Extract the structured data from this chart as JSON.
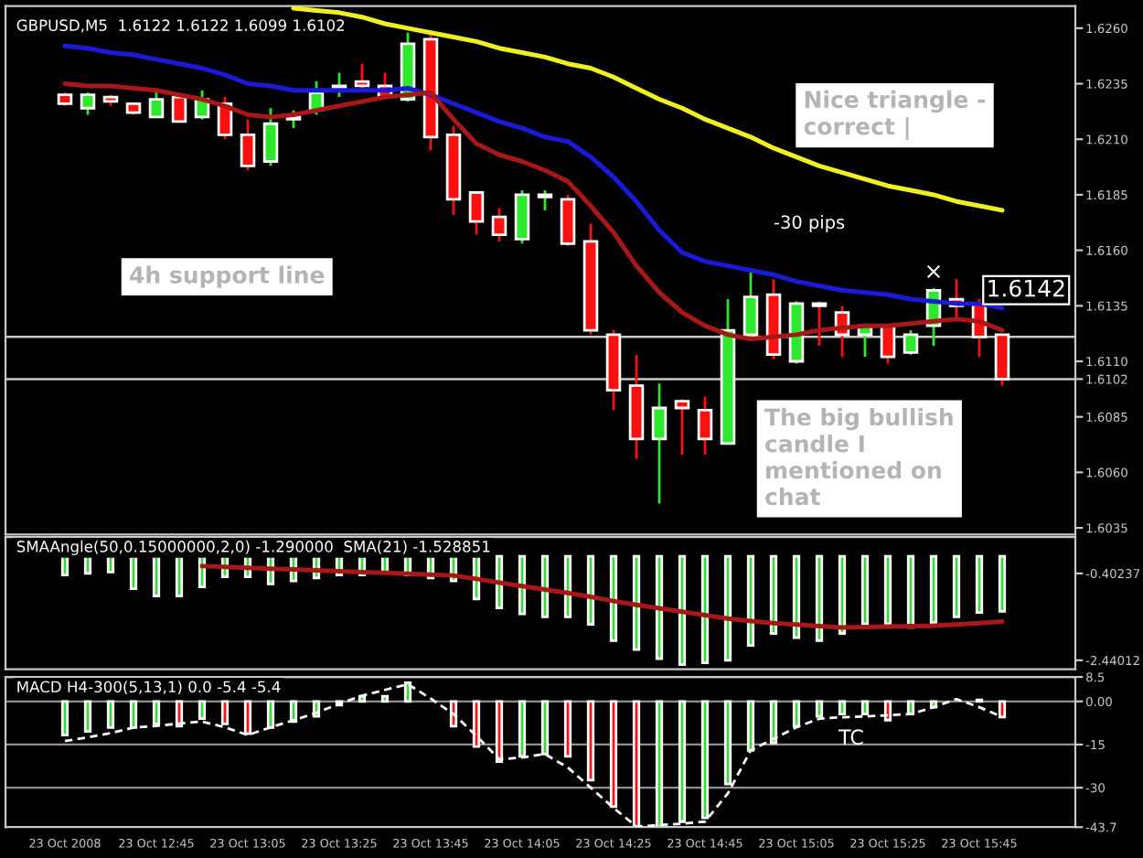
{
  "chart_data": [
    {
      "type": "candlestick",
      "title": "GBPUSD,M5  1.6122 1.6122 1.6099 1.6102",
      "categories": [
        null,
        null,
        null,
        null,
        null,
        null,
        null,
        null,
        null,
        null,
        null,
        null,
        null,
        null,
        null,
        null,
        null,
        null,
        null,
        null,
        null,
        null,
        null,
        null,
        null,
        null,
        null,
        null,
        null,
        null,
        null,
        null,
        null,
        null,
        null,
        null,
        null,
        null,
        null,
        null,
        null,
        null
      ],
      "ohlc": [
        [
          1.623,
          1.6231,
          1.6225,
          1.6226
        ],
        [
          1.6224,
          1.6231,
          1.6221,
          1.623
        ],
        [
          1.6229,
          1.623,
          1.6225,
          1.6227
        ],
        [
          1.6226,
          1.6226,
          1.6221,
          1.6222
        ],
        [
          1.622,
          1.6232,
          1.622,
          1.6228
        ],
        [
          1.6229,
          1.6231,
          1.6218,
          1.6218
        ],
        [
          1.622,
          1.6232,
          1.6219,
          1.6228
        ],
        [
          1.6226,
          1.6229,
          1.621,
          1.6212
        ],
        [
          1.6212,
          1.6219,
          1.6196,
          1.6198
        ],
        [
          1.62,
          1.6224,
          1.6198,
          1.6217
        ],
        [
          1.6219,
          1.6223,
          1.6215,
          1.622
        ],
        [
          1.6223,
          1.6236,
          1.6221,
          1.6231
        ],
        [
          1.6233,
          1.624,
          1.6229,
          1.6234
        ],
        [
          1.6236,
          1.6244,
          1.6233,
          1.6234
        ],
        [
          1.6234,
          1.624,
          1.6228,
          1.6229
        ],
        [
          1.6228,
          1.6258,
          1.6227,
          1.6253
        ],
        [
          1.6255,
          1.6259,
          1.6205,
          1.6211
        ],
        [
          1.6212,
          1.6216,
          1.6176,
          1.6183
        ],
        [
          1.6186,
          1.6186,
          1.6167,
          1.6173
        ],
        [
          1.6175,
          1.6179,
          1.6164,
          1.6167
        ],
        [
          1.6165,
          1.6187,
          1.6163,
          1.6185
        ],
        [
          1.6184,
          1.6187,
          1.6178,
          1.6185
        ],
        [
          1.6183,
          1.6185,
          1.6162,
          1.6163
        ],
        [
          1.6164,
          1.6172,
          1.6122,
          1.6124
        ],
        [
          1.6122,
          1.6124,
          1.6088,
          1.6097
        ],
        [
          1.6099,
          1.6113,
          1.6066,
          1.6075
        ],
        [
          1.6075,
          1.61,
          1.6046,
          1.6089
        ],
        [
          1.6092,
          1.6093,
          1.6068,
          1.6089
        ],
        [
          1.6088,
          1.6094,
          1.6068,
          1.6075
        ],
        [
          1.6073,
          1.6138,
          1.6073,
          1.6124
        ],
        [
          1.6122,
          1.6151,
          1.612,
          1.6139
        ],
        [
          1.614,
          1.6147,
          1.6111,
          1.6113
        ],
        [
          1.611,
          1.6137,
          1.6109,
          1.6136
        ],
        [
          1.6136,
          1.6137,
          1.6117,
          1.6135
        ],
        [
          1.6132,
          1.6135,
          1.6112,
          1.6122
        ],
        [
          1.6122,
          1.6127,
          1.6112,
          1.6126
        ],
        [
          1.6126,
          1.6126,
          1.6109,
          1.6112
        ],
        [
          1.6114,
          1.6124,
          1.6113,
          1.6122
        ],
        [
          1.6126,
          1.6143,
          1.6117,
          1.6142
        ],
        [
          1.6138,
          1.6147,
          1.6128,
          1.6135
        ],
        [
          1.6136,
          1.6138,
          1.6112,
          1.6121
        ],
        [
          1.6122,
          1.6122,
          1.6099,
          1.6102
        ]
      ],
      "colors": [
        "#ff1010",
        "#2ee82e",
        "#ff1010",
        "#ff1010",
        "#2ee82e",
        "#ff1010",
        "#2ee82e",
        "#ff1010",
        "#ff1010",
        "#2ee82e",
        "#2ee82e",
        "#2ee82e",
        "#2ee82e",
        "#ff1010",
        "#ff1010",
        "#2ee82e",
        "#ff1010",
        "#ff1010",
        "#ff1010",
        "#ff1010",
        "#2ee82e",
        "#2ee82e",
        "#ff1010",
        "#ff1010",
        "#ff1010",
        "#ff1010",
        "#2ee82e",
        "#ff1010",
        "#ff1010",
        "#2ee82e",
        "#2ee82e",
        "#ff1010",
        "#2ee82e",
        "#ff1010",
        "#ff1010",
        "#2ee82e",
        "#ff1010",
        "#2ee82e",
        "#2ee82e",
        "#ff1010",
        "#ff1010",
        "#ff1010"
      ],
      "series": [
        {
          "type": "line",
          "color": "#f0f020",
          "values": [
            null,
            null,
            null,
            null,
            null,
            null,
            null,
            null,
            null,
            null,
            1.6269,
            1.6268,
            1.6267,
            1.6265,
            1.6262,
            1.626,
            1.6258,
            1.6256,
            1.6254,
            1.6251,
            1.6249,
            1.6247,
            1.6244,
            1.6242,
            1.6238,
            1.6233,
            1.6228,
            1.6224,
            1.6219,
            1.6215,
            1.6211,
            1.6206,
            1.6202,
            1.6198,
            1.6195,
            1.6192,
            1.6189,
            1.6187,
            1.6185,
            1.6182,
            1.618,
            1.6178
          ]
        },
        {
          "type": "line",
          "color": "#1a1ad8",
          "values": [
            1.6252,
            1.6251,
            1.6249,
            1.6248,
            1.6246,
            1.6244,
            1.6242,
            1.6239,
            1.6235,
            1.6234,
            1.6232,
            1.6232,
            1.6232,
            1.6232,
            1.6232,
            1.6233,
            1.623,
            1.6226,
            1.6222,
            1.6218,
            1.6215,
            1.6211,
            1.6209,
            1.6202,
            1.6193,
            1.6182,
            1.6169,
            1.6159,
            1.6155,
            1.6153,
            1.6151,
            1.6149,
            1.6146,
            1.6144,
            1.6142,
            1.6141,
            1.614,
            1.6138,
            1.6137,
            1.6136,
            1.6136,
            1.6134
          ]
        },
        {
          "type": "line",
          "color": "#a81818",
          "values": [
            1.6235,
            1.6234,
            1.6234,
            1.6233,
            1.6232,
            1.623,
            1.6228,
            1.6225,
            1.6221,
            1.622,
            1.6221,
            1.6223,
            1.6225,
            1.6227,
            1.6229,
            1.623,
            1.6231,
            1.6219,
            1.6208,
            1.6203,
            1.62,
            1.6196,
            1.6191,
            1.618,
            1.6168,
            1.6153,
            1.6141,
            1.6132,
            1.6126,
            1.6122,
            1.612,
            1.6121,
            1.6122,
            1.6124,
            1.6125,
            1.6126,
            1.6126,
            1.6127,
            1.6128,
            1.6129,
            1.6128,
            1.6124
          ]
        }
      ],
      "ylim": [
        1.6032,
        1.627
      ],
      "yticks": [
        {
          "value": 1.626,
          "label": "1.6260"
        },
        {
          "value": 1.6235,
          "label": "1.6235"
        },
        {
          "value": 1.621,
          "label": "1.6210"
        },
        {
          "value": 1.6185,
          "label": "1.6185"
        },
        {
          "value": 1.616,
          "label": "1.6160"
        },
        {
          "value": 1.6135,
          "label": "1.6135"
        },
        {
          "value": 1.611,
          "label": "1.6110"
        },
        {
          "value": 1.6102,
          "label": "1.6102"
        },
        {
          "value": 1.6085,
          "label": "1.6085"
        },
        {
          "value": 1.606,
          "label": "1.6060"
        },
        {
          "value": 1.6035,
          "label": "1.6035"
        }
      ],
      "tick_labels": "y",
      "ref_lines": [
        {
          "axis": "y",
          "value": 1.6121,
          "color": "#c8c8c8"
        },
        {
          "axis": "y",
          "value": 1.6102,
          "color": "#c8c8c8"
        }
      ],
      "annotations": [
        "4h support line",
        "Nice triangle -\ncorrect |",
        "-30 pips",
        "The big bullish\ncandle I\nmentioned on\nchat",
        "×",
        "1.6142"
      ]
    },
    {
      "type": "bar",
      "title": "SMAAngle(50,0.15000000,2,0) -1.290000  SMA(21) -1.528851",
      "categories": [
        null,
        null,
        null,
        null,
        null,
        null,
        null,
        null,
        null,
        null,
        null,
        null,
        null,
        null,
        null,
        null,
        null,
        null,
        null,
        null,
        null,
        null,
        null,
        null,
        null,
        null,
        null,
        null,
        null,
        null,
        null,
        null,
        null,
        null,
        null,
        null,
        null,
        null,
        null,
        null,
        null,
        null
      ],
      "series": [
        {
          "type": "bar",
          "color": "#3ad83a",
          "values": [
            -0.44,
            -0.4,
            -0.37,
            -0.76,
            -0.93,
            -0.93,
            -0.72,
            -0.48,
            -0.48,
            -0.65,
            -0.58,
            -0.51,
            -0.44,
            -0.44,
            -0.37,
            -0.44,
            -0.51,
            -0.58,
            -1.0,
            -1.21,
            -1.35,
            -1.42,
            -1.42,
            -1.6,
            -1.98,
            -2.19,
            -2.4,
            -2.54,
            -2.5,
            -2.44,
            -2.09,
            -1.81,
            -1.91,
            -1.98,
            -1.81,
            -1.59,
            -1.59,
            -1.67,
            -1.56,
            -1.42,
            -1.32,
            -1.29
          ]
        },
        {
          "type": "line",
          "color": "#a81818",
          "values": [
            null,
            null,
            null,
            null,
            null,
            null,
            -0.23,
            -0.25,
            -0.27,
            -0.29,
            -0.31,
            -0.33,
            -0.35,
            -0.37,
            -0.39,
            -0.41,
            -0.43,
            -0.45,
            -0.53,
            -0.62,
            -0.7,
            -0.78,
            -0.86,
            -0.95,
            -1.05,
            -1.14,
            -1.22,
            -1.3,
            -1.38,
            -1.46,
            -1.52,
            -1.57,
            -1.6,
            -1.64,
            -1.67,
            -1.66,
            -1.65,
            -1.64,
            -1.63,
            -1.6,
            -1.57,
            -1.53
          ]
        }
      ],
      "ylim": [
        -2.65,
        0.45
      ],
      "yticks": [
        -0.40237,
        -2.44012
      ],
      "tick_labels": "y"
    },
    {
      "type": "bar",
      "title": "MACD H4-300(5,13,1) 0.0 -5.4 -5.4",
      "categories": [
        "23 Oct 2008",
        null,
        null,
        null,
        "23 Oct 12:45",
        null,
        null,
        null,
        "23 Oct 13:05",
        null,
        null,
        null,
        "23 Oct 13:25",
        null,
        null,
        null,
        "23 Oct 13:45",
        null,
        null,
        null,
        "23 Oct 14:05",
        null,
        null,
        null,
        "23 Oct 14:25",
        null,
        null,
        null,
        "23 Oct 14:45",
        null,
        null,
        null,
        "23 Oct 15:05",
        null,
        null,
        null,
        "23 Oct 15:25",
        null,
        null,
        null,
        "23 Oct 15:45",
        null
      ],
      "series": [
        {
          "type": "bar",
          "colors": [
            "#3ad83a",
            "#3ad83a",
            "#3ad83a",
            "#3ad83a",
            "#3ad83a",
            "#ff1010",
            "#3ad83a",
            "#ff1010",
            "#ff1010",
            "#3ad83a",
            "#3ad83a",
            "#3ad83a",
            "#3ad83a",
            "#3ad83a",
            "#3ad83a",
            "#3ad83a",
            "#3ad83a",
            "#ff1010",
            "#ff1010",
            "#ff1010",
            "#3ad83a",
            "#3ad83a",
            "#ff1010",
            "#ff1010",
            "#ff1010",
            "#ff1010",
            "#3ad83a",
            "#3ad83a",
            "#3ad83a",
            "#3ad83a",
            "#3ad83a",
            "#3ad83a",
            "#3ad83a",
            "#3ad83a",
            "#3ad83a",
            "#3ad83a",
            "#ff1010",
            "#3ad83a",
            "#3ad83a",
            "#3ad83a",
            "#3ad83a",
            "#ff1010"
          ],
          "values": [
            -11.7,
            -10.4,
            -9.1,
            -9.1,
            -7.8,
            -8.6,
            -6.0,
            -7.8,
            -11.2,
            -9.1,
            -7.0,
            -5.2,
            -1.3,
            1.8,
            1.8,
            6.5,
            null,
            -8.6,
            -15.7,
            -20.9,
            -19.1,
            -18.3,
            -19.1,
            -27.4,
            -36.6,
            -43.7,
            -43.6,
            -41.8,
            -40.5,
            -28.7,
            -17.0,
            -14.4,
            -8.6,
            -5.2,
            -4.4,
            -4.4,
            -6.5,
            -4.4,
            -2.0,
            null,
            0.5,
            -5.4
          ]
        },
        {
          "type": "line",
          "color": "#ffffff",
          "line_style": "dashed",
          "values": [
            -13.8,
            -12.5,
            -11.0,
            -9.1,
            -8.5,
            -7.7,
            -7.0,
            -9.0,
            -11.7,
            -9.0,
            -6.5,
            -4.0,
            -0.8,
            2.0,
            4.0,
            6.0,
            1.0,
            -4.4,
            -12.0,
            -20.1,
            -19.5,
            -18.3,
            -23.0,
            -30.0,
            -37.0,
            -43.5,
            -43.0,
            -42.5,
            -41.8,
            -32.0,
            -17.0,
            -13.0,
            -9.0,
            -6.0,
            -5.5,
            -5.2,
            -4.8,
            -4.4,
            -2.0,
            0.8,
            -2.0,
            -5.4
          ]
        }
      ],
      "ylim": [
        -43.7,
        8.5
      ],
      "yticks": [
        8.5,
        {
          "value": 0,
          "label": "0.00"
        },
        -15,
        -30,
        -43.7
      ],
      "grid": "y",
      "annotations": [
        "TC"
      ]
    }
  ]
}
